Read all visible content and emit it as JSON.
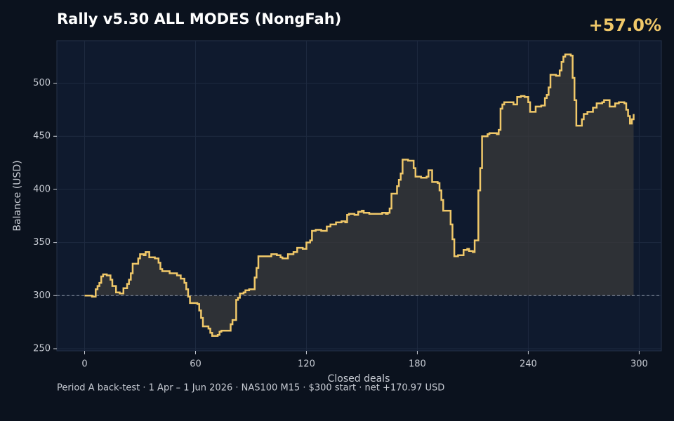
{
  "chart_data": {
    "type": "step",
    "title": "Rally v5.30 ALL MODES (NongFah)",
    "headline": "+57.0%",
    "footer": "Period A back-test  ·  1 Apr – 1 Jun 2026  ·  NAS100 M15  ·  $300 start  ·  net +170.97 USD",
    "x_label": "Closed deals",
    "y_label": "Balance (USD)",
    "xlim": [
      -15,
      312
    ],
    "ylim": [
      248,
      540
    ],
    "xticks": [
      0,
      60,
      120,
      180,
      240,
      300
    ],
    "yticks": [
      250,
      300,
      350,
      400,
      450,
      500
    ],
    "grid": true,
    "baseline": 300,
    "series": [
      {
        "name": "Balance",
        "color": "#f0c869",
        "x": [
          0,
          4,
          6,
          7,
          8,
          9,
          10,
          12,
          14,
          15,
          17,
          19,
          21,
          23,
          24,
          25,
          26,
          28,
          29,
          30,
          32,
          33,
          35,
          38,
          40,
          41,
          42,
          44,
          46,
          50,
          52,
          54,
          55,
          56,
          57,
          61,
          62,
          63,
          64,
          67,
          68,
          69,
          72,
          73,
          74,
          76,
          78,
          79,
          80,
          82,
          83,
          84,
          86,
          87,
          89,
          91,
          92,
          93,
          94,
          96,
          101,
          104,
          106,
          107,
          110,
          113,
          115,
          118,
          120,
          122,
          123,
          125,
          128,
          131,
          133,
          136,
          139,
          141,
          142,
          143,
          146,
          148,
          150,
          151,
          154,
          161,
          163,
          164,
          165,
          166,
          169,
          170,
          171,
          172,
          175,
          178,
          179,
          182,
          185,
          186,
          188,
          191,
          192,
          193,
          194,
          197,
          198,
          199,
          200,
          202,
          204,
          205,
          207,
          208,
          210,
          211,
          213,
          214,
          215,
          216,
          218,
          219,
          223,
          224,
          225,
          226,
          227,
          230,
          232,
          234,
          236,
          238,
          240,
          241,
          244,
          247,
          249,
          250,
          251,
          252,
          255,
          257,
          258,
          259,
          260,
          263,
          264,
          265,
          266,
          268,
          269,
          270,
          272,
          275,
          277,
          280,
          281,
          284,
          287,
          289,
          292,
          293,
          294,
          295,
          296,
          297
        ],
        "values": [
          300,
          299,
          306,
          309,
          312,
          318,
          320,
          319,
          315,
          309,
          303,
          302,
          307,
          311,
          315,
          321,
          330,
          330,
          335,
          339,
          338,
          341,
          336,
          335,
          331,
          325,
          323,
          323,
          321,
          319,
          316,
          312,
          306,
          299,
          293,
          292,
          286,
          279,
          271,
          269,
          265,
          262,
          263,
          266,
          267,
          267,
          267,
          273,
          277,
          296,
          298,
          302,
          303,
          305,
          306,
          306,
          317,
          326,
          337,
          337,
          339,
          338,
          336,
          335,
          339,
          341,
          345,
          344,
          350,
          352,
          361,
          362,
          361,
          365,
          367,
          369,
          370,
          369,
          376,
          377,
          376,
          379,
          380,
          378,
          377,
          378,
          377,
          378,
          382,
          396,
          403,
          409,
          415,
          428,
          427,
          420,
          412,
          411,
          412,
          418,
          407,
          406,
          399,
          390,
          380,
          380,
          367,
          353,
          337,
          338,
          338,
          343,
          344,
          342,
          341,
          352,
          399,
          420,
          450,
          450,
          452,
          453,
          452,
          456,
          476,
          480,
          482,
          482,
          480,
          487,
          488,
          487,
          482,
          473,
          478,
          479,
          486,
          489,
          496,
          508,
          507,
          512,
          520,
          525,
          527,
          526,
          505,
          484,
          460,
          460,
          466,
          471,
          473,
          477,
          481,
          482,
          484,
          478,
          481,
          482,
          481,
          475,
          469,
          462,
          466,
          471
        ]
      }
    ]
  }
}
